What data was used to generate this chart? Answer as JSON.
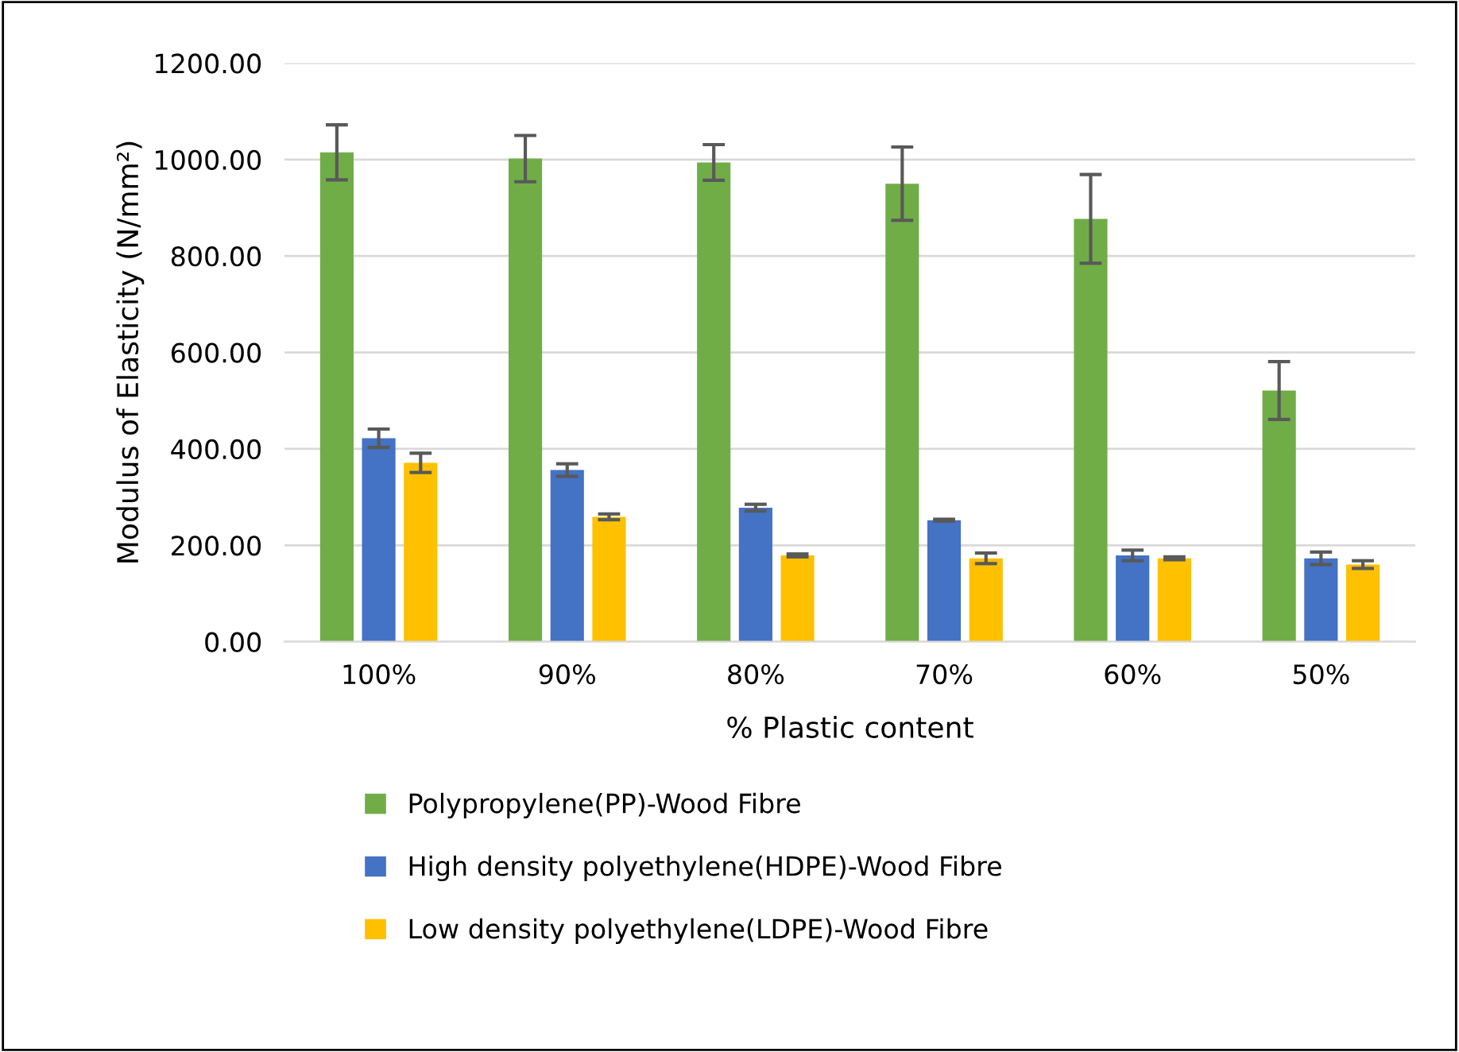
{
  "chart_data": {
    "type": "bar",
    "xlabel": "% Plastic content",
    "ylabel": "Modulus of Elasticity (N/mm²)",
    "categories": [
      "100%",
      "90%",
      "80%",
      "70%",
      "60%",
      "50%"
    ],
    "series": [
      {
        "name": "Polypropylene(PP)-Wood Fibre",
        "color": "#70ad47",
        "values": [
          1015,
          1002,
          994,
          950,
          877,
          521
        ],
        "errors": [
          57,
          48,
          37,
          76,
          92,
          60
        ]
      },
      {
        "name": "High density polyethylene(HDPE)-Wood Fibre",
        "color": "#4472c4",
        "values": [
          422,
          356,
          278,
          252,
          179,
          173
        ],
        "errors": [
          19,
          13,
          7,
          2,
          11,
          13
        ]
      },
      {
        "name": "Low density polyethylene(LDPE)-Wood Fibre",
        "color": "#ffc000",
        "values": [
          371,
          259,
          179,
          173,
          173,
          160
        ],
        "errors": [
          20,
          6,
          3,
          11,
          3,
          8
        ]
      }
    ],
    "ylim": [
      0,
      1200
    ],
    "yticks": [
      {
        "value": 0,
        "label": "0.00"
      },
      {
        "value": 200,
        "label": "200.00"
      },
      {
        "value": 400,
        "label": "400.00"
      },
      {
        "value": 600,
        "label": "600.00"
      },
      {
        "value": 800,
        "label": "800.00"
      },
      {
        "value": 1000,
        "label": "1000.00"
      },
      {
        "value": 1200,
        "label": "1200.00"
      }
    ],
    "grid": "y",
    "legend": "bottom"
  }
}
